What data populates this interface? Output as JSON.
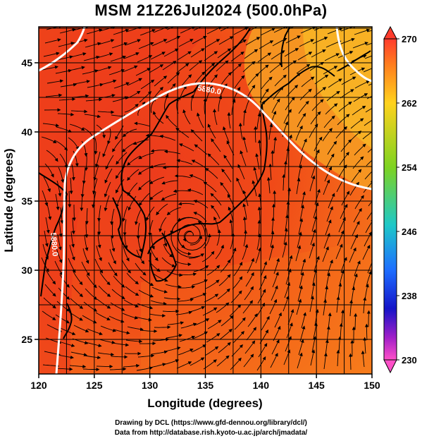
{
  "title": "MSM 21Z26Jul2024 (500.0hPa)",
  "x_axis": {
    "label": "Longitude (degrees)",
    "min": 120,
    "max": 150,
    "ticks": [
      "120",
      "125",
      "130",
      "135",
      "140",
      "145",
      "150"
    ]
  },
  "y_axis": {
    "label": "Latitude  (degrees)",
    "min": 22.5,
    "max": 47.6,
    "ticks": [
      "25",
      "30",
      "35",
      "40",
      "45"
    ]
  },
  "colorbar": {
    "min": 230,
    "max": 270,
    "tick_labels": [
      "270",
      "262",
      "254",
      "246",
      "238",
      "230"
    ],
    "colors": [
      "#ff3c2d",
      "#ff7d1e",
      "#ffd21e",
      "#7ed321",
      "#1ec8c8",
      "#1e6eff",
      "#1414c8",
      "#a01ec8",
      "#ff50c8"
    ]
  },
  "contours": [
    {
      "label": "5880.0"
    },
    {
      "label": "5880.0"
    }
  ],
  "typhoon_center": {
    "lon": 133.7,
    "lat": 32.5
  },
  "credits": {
    "line1": "Drawing by DCL (https://www.gfd-dennou.org/library/dcl/)",
    "line2": "Data from http://database.rish.kyoto-u.ac.jp/arch/jmadata/"
  },
  "colors": {
    "hot": "#ec3a1c",
    "warm": "#f25a16",
    "mid": "#f6821c",
    "cool": "#f8b224",
    "contour": "#ffffff"
  }
}
